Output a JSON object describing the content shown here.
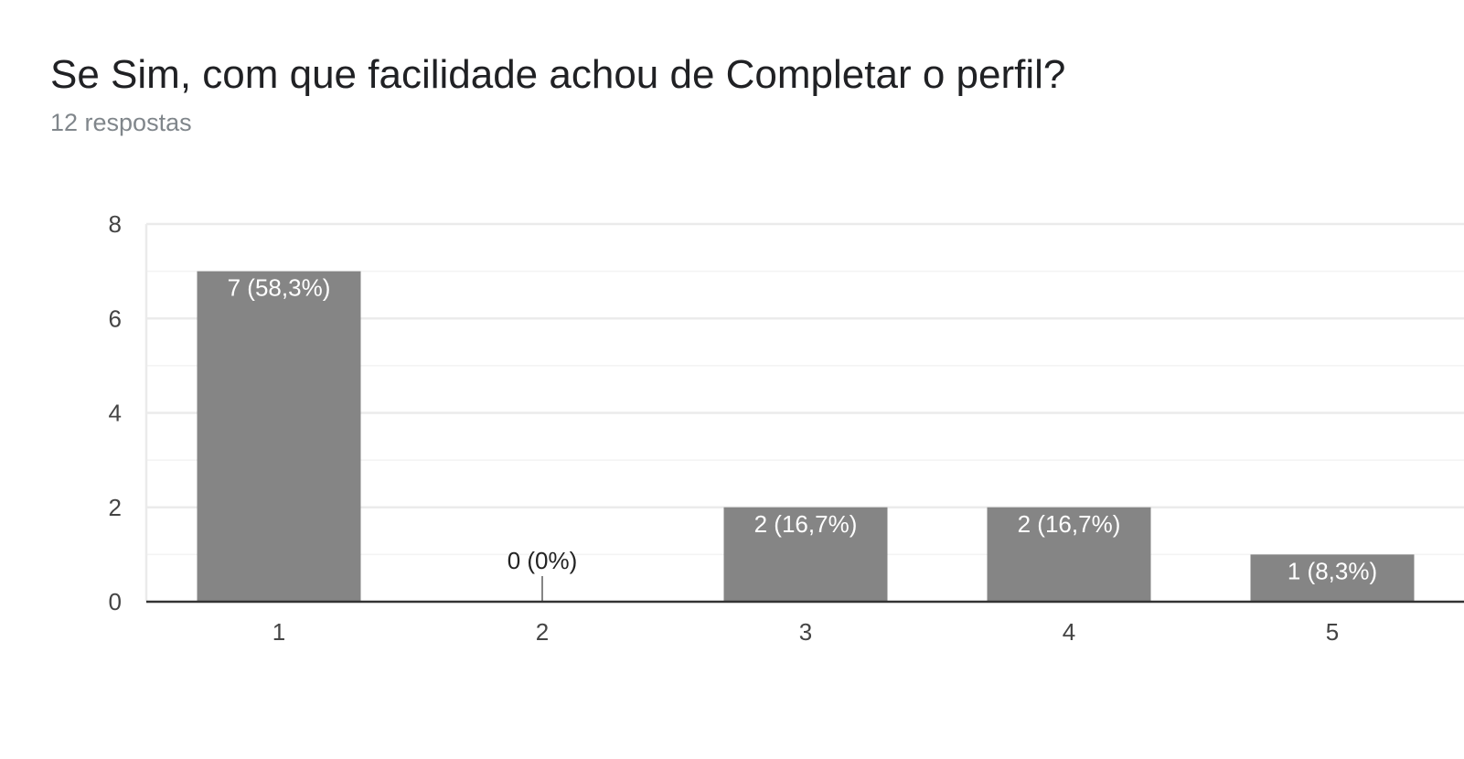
{
  "header": {
    "title": "Se Sim, com que facilidade achou de Completar o perfil?",
    "responses": "12 respostas"
  },
  "chart_data": {
    "type": "bar",
    "categories": [
      "1",
      "2",
      "3",
      "4",
      "5"
    ],
    "values": [
      7,
      0,
      2,
      2,
      1
    ],
    "data_labels": [
      "7 (58,3%)",
      "0 (0%)",
      "2 (16,7%)",
      "2 (16,7%)",
      "1 (8,3%)"
    ],
    "ylim": [
      0,
      8
    ],
    "yticks": [
      0,
      2,
      4,
      6,
      8
    ],
    "title": "Se Sim, com que facilidade achou de Completar o perfil?",
    "subtitle": "12 respostas",
    "xlabel": "",
    "ylabel": "",
    "grid": true,
    "colors": {
      "bar": "#858585",
      "grid": "#ebebeb",
      "minor_grid": "#f3f3f3",
      "axis": "#333333",
      "tick_text": "#444444",
      "label_inside": "#ffffff",
      "label_outside": "#222222"
    }
  }
}
